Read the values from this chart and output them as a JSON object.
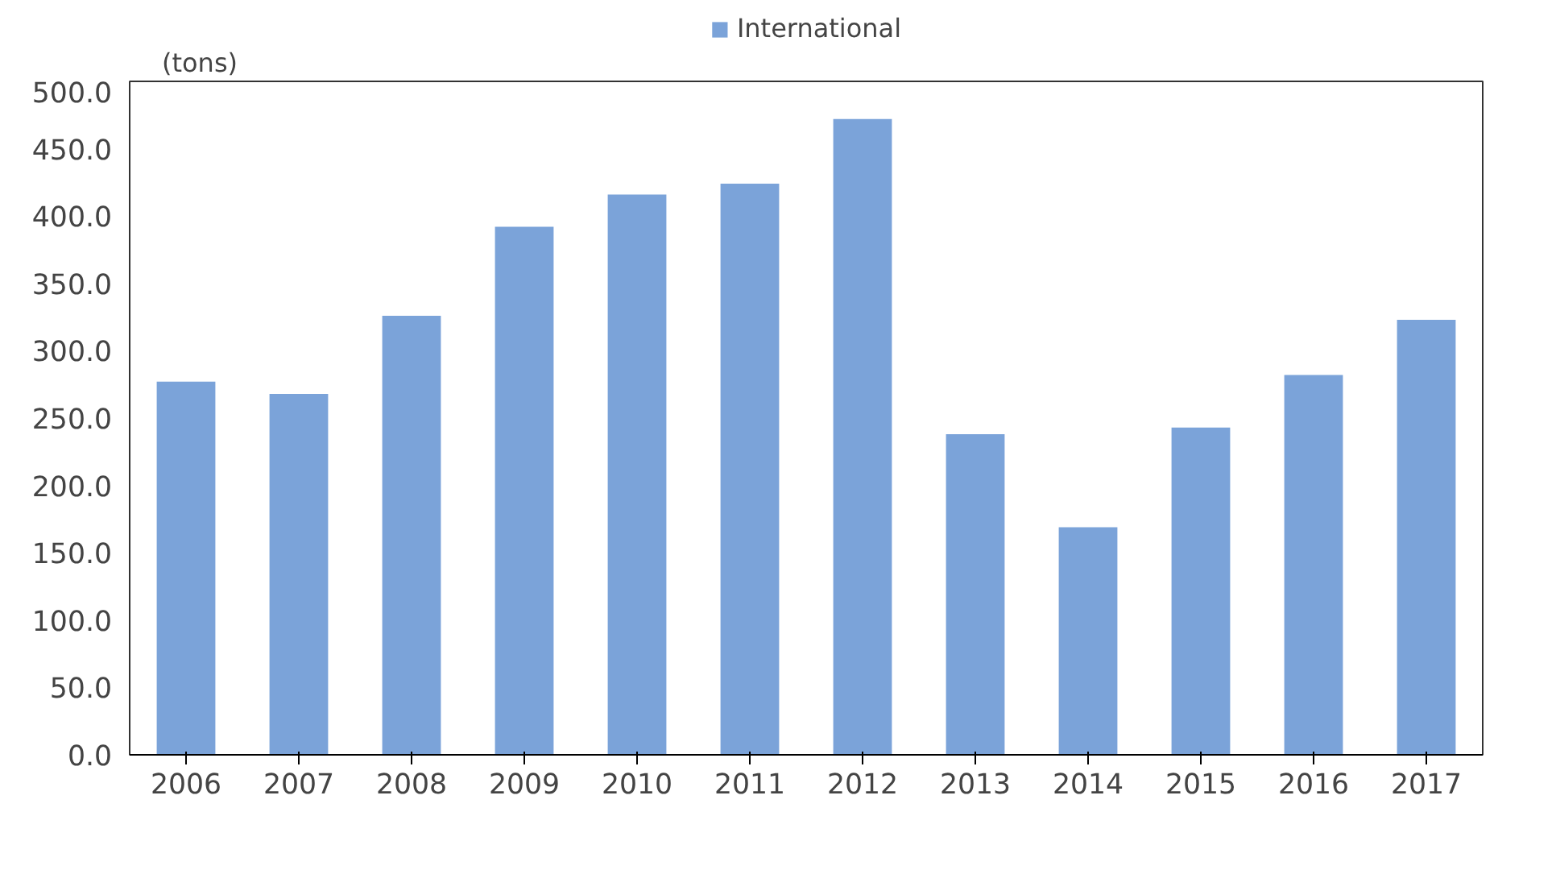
{
  "chart_data": {
    "type": "bar",
    "ylabel": "(tons)",
    "categories": [
      "2006",
      "2007",
      "2008",
      "2009",
      "2010",
      "2011",
      "2012",
      "2013",
      "2014",
      "2015",
      "2016",
      "2017"
    ],
    "series": [
      {
        "name": "International",
        "color": "#7ba3d9",
        "values": [
          277,
          268,
          326,
          392,
          416,
          424,
          472,
          238,
          169,
          243,
          282,
          323
        ]
      }
    ],
    "ylim": [
      0,
      500
    ],
    "yticks": [
      {
        "value": 0,
        "label": "0.0"
      },
      {
        "value": 50,
        "label": "50.0"
      },
      {
        "value": 100,
        "label": "100.0"
      },
      {
        "value": 150,
        "label": "150.0"
      },
      {
        "value": 200,
        "label": "200.0"
      },
      {
        "value": 250,
        "label": "250.0"
      },
      {
        "value": 300,
        "label": "300.0"
      },
      {
        "value": 350,
        "label": "350.0"
      },
      {
        "value": 400,
        "label": "400.0"
      },
      {
        "value": 450,
        "label": "450.0"
      },
      {
        "value": 500,
        "label": "500.0"
      }
    ],
    "grid": false,
    "legend": "top"
  }
}
